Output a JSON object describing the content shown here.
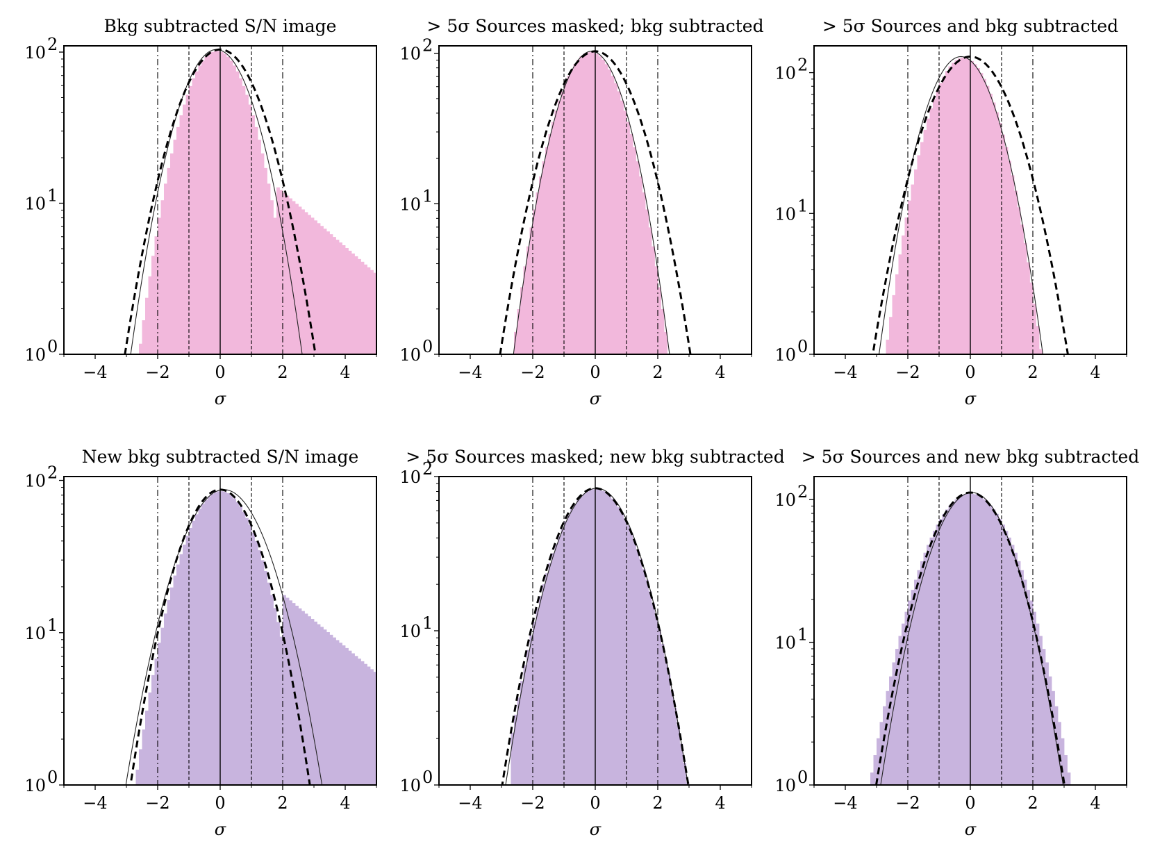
{
  "figure": {
    "bar_colors": {
      "pink": "#f2b8dc",
      "purple": "#c8b4de"
    },
    "fit_styles": [
      "solid-thin",
      "dashed-thick"
    ],
    "guide_lines": [
      -2,
      -1,
      0,
      1,
      2
    ]
  },
  "chart_data": [
    {
      "type": "bar",
      "title": "Bkg subtracted S/N image",
      "xlabel": "σ",
      "xlim": [
        -5,
        5
      ],
      "ylim": [
        1,
        110
      ],
      "yscale": "log",
      "xticks": [
        "−4",
        "−2",
        "0",
        "2",
        "4"
      ],
      "yticks": [
        {
          "value": 1,
          "base": "10",
          "exp": "0"
        },
        {
          "value": 10,
          "base": "10",
          "exp": "1"
        },
        {
          "value": 100,
          "base": "10",
          "exp": "2"
        }
      ],
      "bar_color": "pink",
      "hist": {
        "bin_width": 0.1,
        "amp": 102,
        "mu": -0.1,
        "sigma": 0.82,
        "min_x": -2.75,
        "max_x": 5.0,
        "tail": {
          "start": 1.8,
          "amp": 13,
          "slope": 0.42,
          "floor": 3.4
        }
      },
      "fits": [
        {
          "style": "solid-thin",
          "amp": 104,
          "mu": -0.12,
          "sigma": 0.9
        },
        {
          "style": "dashed-thick",
          "amp": 104,
          "mu": 0.0,
          "sigma": 1.0
        }
      ]
    },
    {
      "type": "bar",
      "title": "> 5σ Sources masked; bkg subtracted",
      "xlabel": "σ",
      "xlim": [
        -5,
        5
      ],
      "ylim": [
        1,
        112
      ],
      "yscale": "log",
      "xticks": [
        "−4",
        "−2",
        "0",
        "2",
        "4"
      ],
      "yticks": [
        {
          "value": 1,
          "base": "10",
          "exp": "0"
        },
        {
          "value": 10,
          "base": "10",
          "exp": "1"
        },
        {
          "value": 100,
          "base": "10",
          "exp": "2"
        }
      ],
      "bar_color": "pink",
      "hist": {
        "bin_width": 0.1,
        "amp": 102,
        "mu": -0.15,
        "sigma": 0.82,
        "min_x": -2.75,
        "max_x": 2.45
      },
      "fits": [
        {
          "style": "solid-thin",
          "amp": 103,
          "mu": -0.12,
          "sigma": 0.82
        },
        {
          "style": "dashed-thick",
          "amp": 103,
          "mu": 0.0,
          "sigma": 1.0
        }
      ]
    },
    {
      "type": "bar",
      "title": "> 5σ Sources and bkg subtracted",
      "xlabel": "σ",
      "xlim": [
        -5,
        5
      ],
      "ylim": [
        1,
        155
      ],
      "yscale": "log",
      "xticks": [
        "−4",
        "−2",
        "0",
        "2",
        "4"
      ],
      "yticks": [
        {
          "value": 1,
          "base": "10",
          "exp": "0"
        },
        {
          "value": 10,
          "base": "10",
          "exp": "1"
        },
        {
          "value": 100,
          "base": "10",
          "exp": "2"
        }
      ],
      "bar_color": "pink",
      "hist": {
        "bin_width": 0.1,
        "amp": 128,
        "mu": -0.22,
        "sigma": 0.8,
        "min_x": -3.25,
        "max_x": 3.35
      },
      "fits": [
        {
          "style": "solid-thin",
          "amp": 130,
          "mu": -0.3,
          "sigma": 0.84
        },
        {
          "style": "dashed-thick",
          "amp": 130,
          "mu": 0.0,
          "sigma": 1.0
        }
      ]
    },
    {
      "type": "bar",
      "title": "New bkg subtracted S/N image",
      "xlabel": "σ",
      "xlim": [
        -5,
        5
      ],
      "ylim": [
        1,
        106
      ],
      "yscale": "log",
      "xticks": [
        "−4",
        "−2",
        "0",
        "2",
        "4"
      ],
      "yticks": [
        {
          "value": 1,
          "base": "10",
          "exp": "0"
        },
        {
          "value": 10,
          "base": "10",
          "exp": "1"
        },
        {
          "value": 100,
          "base": "10",
          "exp": "2"
        }
      ],
      "bar_color": "purple",
      "hist": {
        "bin_width": 0.1,
        "amp": 85,
        "mu": 0.02,
        "sigma": 0.92,
        "min_x": -2.75,
        "max_x": 5.0,
        "tail": {
          "start": 2.0,
          "amp": 18,
          "slope": 0.4,
          "floor": 4.2
        }
      },
      "fits": [
        {
          "style": "solid-thin",
          "amp": 87,
          "mu": 0.12,
          "sigma": 1.05
        },
        {
          "style": "dashed-thick",
          "amp": 87,
          "mu": 0.0,
          "sigma": 0.96
        }
      ]
    },
    {
      "type": "bar",
      "title": "> 5σ Sources masked; new bkg subtracted",
      "xlabel": "σ",
      "xlim": [
        -5,
        5
      ],
      "ylim": [
        1,
        100
      ],
      "yscale": "log",
      "xticks": [
        "−4",
        "−2",
        "0",
        "2",
        "4"
      ],
      "yticks": [
        {
          "value": 1,
          "base": "10",
          "exp": "0"
        },
        {
          "value": 10,
          "base": "10",
          "exp": "1"
        },
        {
          "value": 100,
          "base": "10",
          "exp": "2"
        }
      ],
      "bar_color": "purple",
      "hist": {
        "bin_width": 0.1,
        "amp": 83,
        "mu": 0.02,
        "sigma": 0.99,
        "min_x": -2.75,
        "max_x": 3.05
      },
      "fits": [
        {
          "style": "solid-thin",
          "amp": 84,
          "mu": 0.05,
          "sigma": 0.98
        },
        {
          "style": "dashed-thick",
          "amp": 84,
          "mu": 0.0,
          "sigma": 1.0
        }
      ]
    },
    {
      "type": "bar",
      "title": "> 5σ Sources and new bkg subtracted",
      "xlabel": "σ",
      "xlim": [
        -5,
        5
      ],
      "ylim": [
        1,
        145
      ],
      "yscale": "log",
      "xticks": [
        "−4",
        "−2",
        "0",
        "2",
        "4"
      ],
      "yticks": [
        {
          "value": 1,
          "base": "10",
          "exp": "0"
        },
        {
          "value": 10,
          "base": "10",
          "exp": "1"
        },
        {
          "value": 100,
          "base": "10",
          "exp": "2"
        }
      ],
      "bar_color": "purple",
      "hist": {
        "bin_width": 0.1,
        "amp": 110,
        "mu": 0.0,
        "sigma": 1.05,
        "min_x": -3.65,
        "max_x": 3.95
      },
      "fits": [
        {
          "style": "solid-thin",
          "amp": 112,
          "mu": 0.05,
          "sigma": 0.95
        },
        {
          "style": "dashed-thick",
          "amp": 112,
          "mu": 0.0,
          "sigma": 0.98
        }
      ]
    }
  ]
}
